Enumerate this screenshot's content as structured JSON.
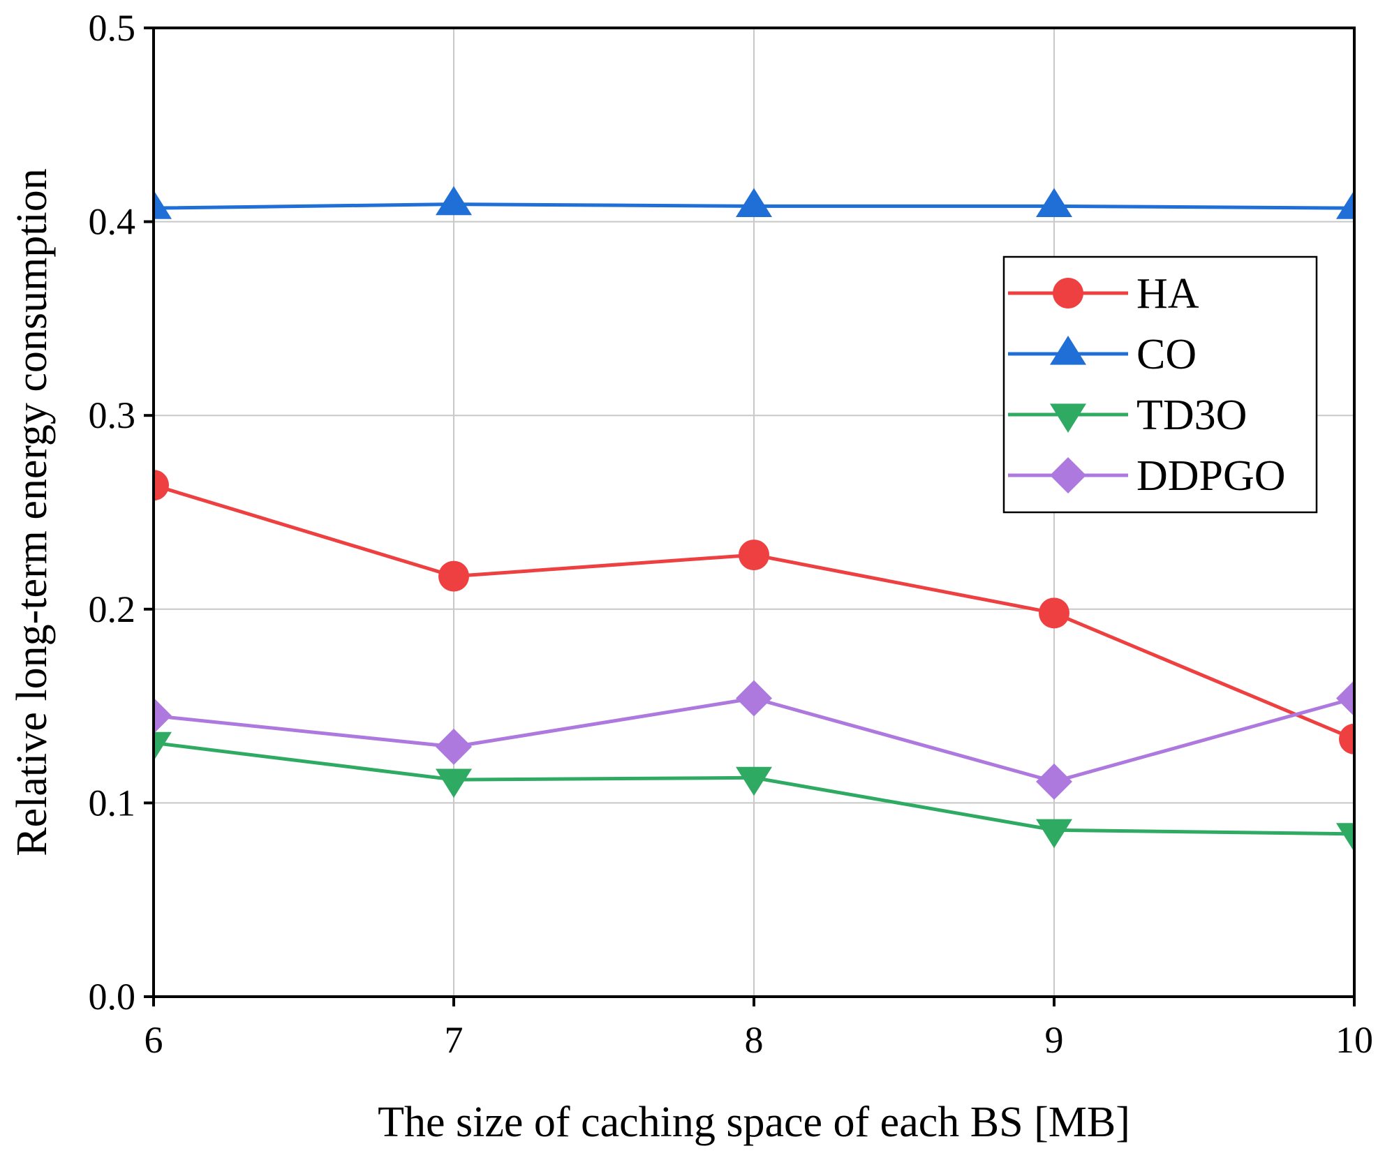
{
  "chart_data": {
    "type": "line",
    "title": "",
    "xlabel": "The size of caching space of each BS [MB]",
    "ylabel": "Relative long-term energy consumption",
    "x": [
      6,
      7,
      8,
      9,
      10
    ],
    "xlim": [
      6,
      10
    ],
    "ylim": [
      0.0,
      0.5
    ],
    "xticks": [
      "6",
      "7",
      "8",
      "9",
      "10"
    ],
    "yticks": [
      "0.0",
      "0.1",
      "0.2",
      "0.3",
      "0.4",
      "0.5"
    ],
    "grid": true,
    "legend_position": "right",
    "series": [
      {
        "name": "HA",
        "color": "#ee4040",
        "marker": "circle",
        "values": [
          0.264,
          0.217,
          0.228,
          0.198,
          0.133
        ]
      },
      {
        "name": "CO",
        "color": "#1f6fd6",
        "marker": "triangle-up",
        "values": [
          0.407,
          0.409,
          0.408,
          0.408,
          0.407
        ]
      },
      {
        "name": "TD3O",
        "color": "#2eaa63",
        "marker": "triangle-down",
        "values": [
          0.131,
          0.112,
          0.113,
          0.086,
          0.084
        ]
      },
      {
        "name": "DDPGO",
        "color": "#ad79de",
        "marker": "diamond",
        "values": [
          0.145,
          0.129,
          0.154,
          0.111,
          0.154
        ]
      }
    ]
  }
}
